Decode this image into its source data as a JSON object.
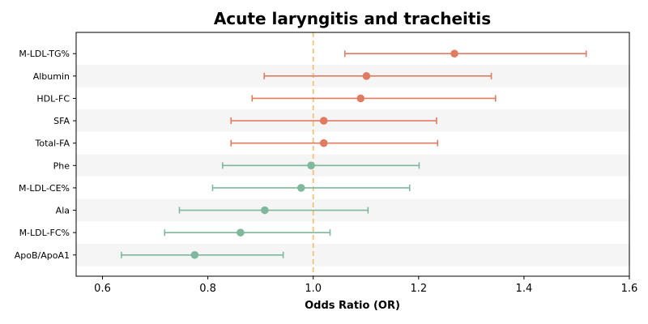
{
  "chart_data": {
    "type": "forest",
    "title": "Acute laryngitis and tracheitis",
    "xlabel": "Odds Ratio (OR)",
    "xlim": [
      0.55,
      1.6
    ],
    "xticks": [
      0.6,
      0.8,
      1.0,
      1.2,
      1.4,
      1.6
    ],
    "xtick_labels": [
      "0.6",
      "0.8",
      "1.0",
      "1.2",
      "1.4",
      "1.6"
    ],
    "reference_line": 1.0,
    "colors": {
      "positive": "#e07b61",
      "negative": "#7fb89c",
      "reference": "#f2c27b",
      "band": "#f5f5f5"
    },
    "rows": [
      {
        "label": "M-LDL-TG%",
        "or": 1.268,
        "lower": 1.06,
        "upper": 1.518,
        "direction": "positive"
      },
      {
        "label": "Albumin",
        "or": 1.101,
        "lower": 0.907,
        "upper": 1.338,
        "direction": "positive"
      },
      {
        "label": "HDL-FC",
        "or": 1.09,
        "lower": 0.884,
        "upper": 1.346,
        "direction": "positive"
      },
      {
        "label": "SFA",
        "or": 1.02,
        "lower": 0.844,
        "upper": 1.234,
        "direction": "positive"
      },
      {
        "label": "Total-FA",
        "or": 1.02,
        "lower": 0.844,
        "upper": 1.236,
        "direction": "positive"
      },
      {
        "label": "Phe",
        "or": 0.996,
        "lower": 0.828,
        "upper": 1.201,
        "direction": "negative"
      },
      {
        "label": "M-LDL-CE%",
        "or": 0.977,
        "lower": 0.809,
        "upper": 1.183,
        "direction": "negative"
      },
      {
        "label": "Ala",
        "or": 0.908,
        "lower": 0.746,
        "upper": 1.104,
        "direction": "negative"
      },
      {
        "label": "M-LDL-FC%",
        "or": 0.862,
        "lower": 0.718,
        "upper": 1.032,
        "direction": "negative"
      },
      {
        "label": "ApoB/ApoA1",
        "or": 0.775,
        "lower": 0.636,
        "upper": 0.943,
        "direction": "negative"
      }
    ]
  }
}
